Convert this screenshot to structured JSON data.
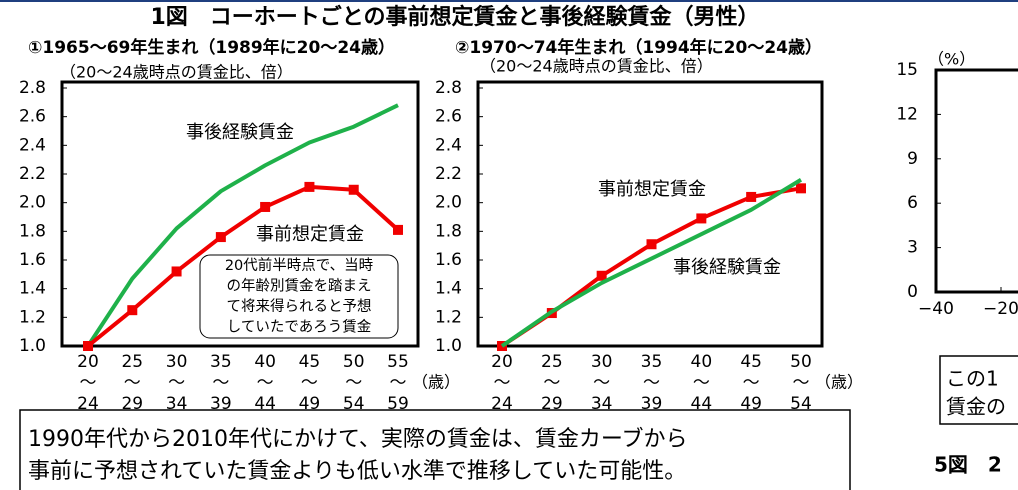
{
  "title": "1図　コーホートごとの事前想定賃金と事後経験賃金（男性）",
  "chart_data": [
    {
      "type": "line",
      "subtitle": "①1965～69年生まれ（1989年に20～24歳）",
      "y_label": "（20～24歳時点の賃金比、倍）",
      "x_unit": "（歳）",
      "categories": [
        "20～24",
        "25～29",
        "30～34",
        "35～39",
        "40～44",
        "45～49",
        "50～54",
        "55～59"
      ],
      "series": [
        {
          "name": "事後経験賃金",
          "color": "#1fb14a",
          "marker": false,
          "values": [
            1.0,
            1.47,
            1.82,
            2.08,
            2.26,
            2.42,
            2.53,
            2.68
          ]
        },
        {
          "name": "事前想定賃金",
          "color": "#f00000",
          "marker": true,
          "values": [
            1.0,
            1.25,
            1.52,
            1.76,
            1.97,
            2.11,
            2.09,
            1.81
          ]
        }
      ],
      "annotation": [
        "20代前半時点で、当時",
        "の年齢別賃金を踏まえ",
        "て将来得られると予想",
        "していたであろう賃金"
      ],
      "ylim": [
        1.0,
        2.8
      ],
      "yticks": [
        {
          "value": 1.0,
          "label": "1.0"
        },
        1.2,
        1.4,
        1.6,
        1.8,
        {
          "value": 2.0,
          "label": "2.0"
        },
        2.2,
        2.4,
        2.6,
        2.8
      ]
    },
    {
      "type": "line",
      "subtitle": "②1970～74年生まれ（1994年に20～24歳）",
      "y_label": "（20～24歳時点の賃金比、倍）",
      "x_unit": "（歳）",
      "categories": [
        "20～24",
        "25～29",
        "30～34",
        "35～39",
        "40～44",
        "45～49",
        "50～54"
      ],
      "series": [
        {
          "name": "事前想定賃金",
          "color": "#f00000",
          "marker": true,
          "values": [
            1.0,
            1.23,
            1.49,
            1.71,
            1.89,
            2.04,
            2.1
          ]
        },
        {
          "name": "事後経験賃金",
          "color": "#1fb14a",
          "marker": false,
          "values": [
            1.0,
            1.24,
            1.44,
            1.61,
            1.78,
            1.95,
            2.16
          ]
        }
      ],
      "ylim": [
        1.0,
        2.8
      ],
      "yticks": [
        {
          "value": 1.0,
          "label": "1.0"
        },
        1.2,
        1.4,
        1.6,
        1.8,
        {
          "value": 2.0,
          "label": "2.0"
        },
        2.2,
        2.4,
        2.6,
        2.8
      ]
    },
    {
      "type": "bar",
      "y_label": "（%）",
      "ylim": [
        0,
        15
      ],
      "yticks": [
        0,
        3,
        6,
        9,
        12,
        15
      ],
      "xlim": [
        -40,
        40
      ],
      "xticks": [
        {
          "value": -40,
          "label": "−40"
        },
        {
          "value": -20,
          "label": "−20"
        }
      ]
    }
  ],
  "note": [
    "1990年代から2010年代にかけて、実際の賃金は、賃金カーブから",
    "事前に予想されていた賃金よりも低い水準で推移していた可能性。"
  ],
  "side_note": [
    "この1",
    "賃金の"
  ],
  "next_title": "5図　2"
}
